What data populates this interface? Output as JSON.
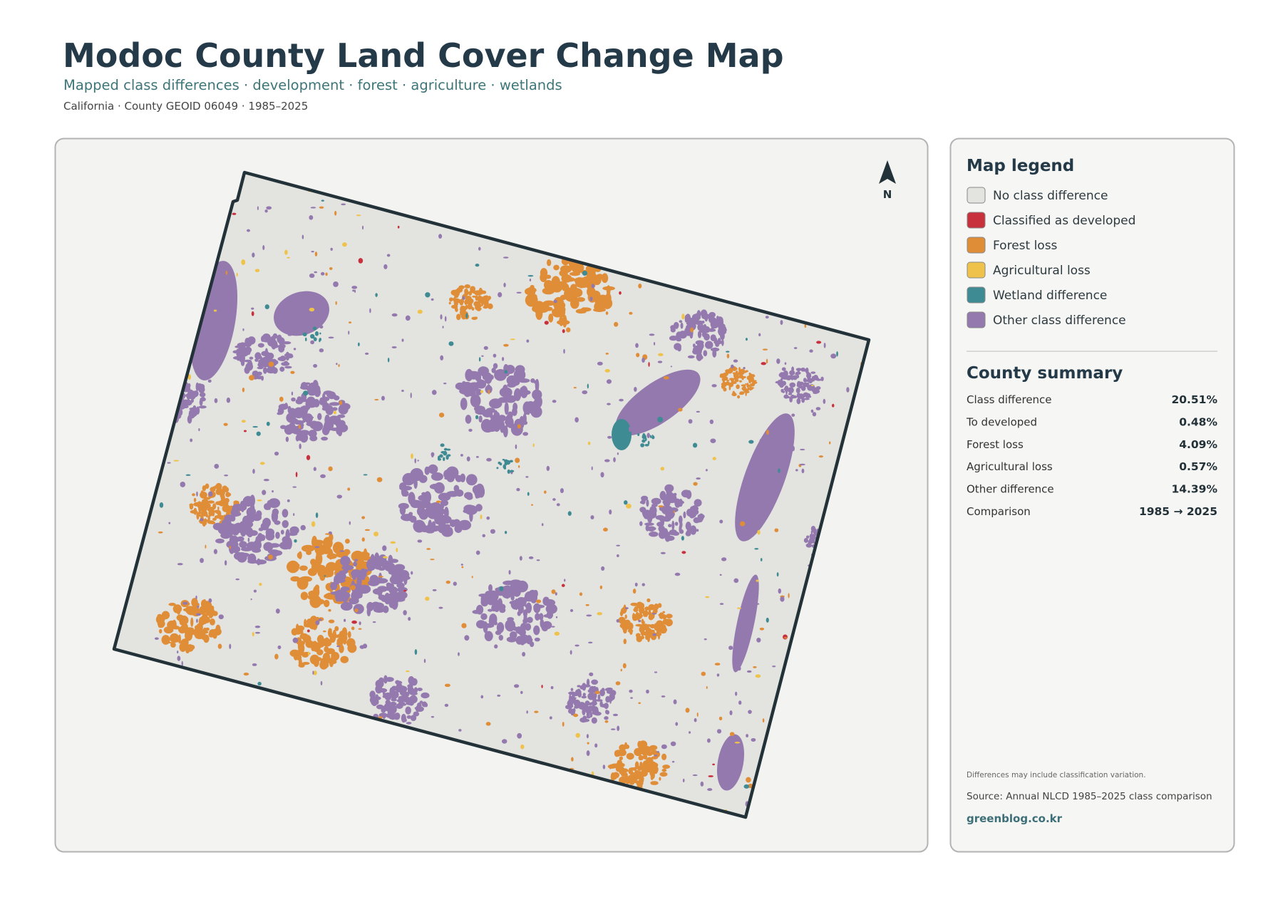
{
  "header": {
    "title": "Modoc County Land Cover Change Map",
    "subtitle": "Mapped class differences · development · forest · agriculture · wetlands",
    "meta": "California · County GEOID 06049 · 1985–2025"
  },
  "map": {
    "north_label": "N"
  },
  "legend": {
    "title": "Map legend",
    "items": [
      {
        "label": "No class difference",
        "color": "#e3e3df"
      },
      {
        "label": "Classified as developed",
        "color": "#c8303c"
      },
      {
        "label": "Forest loss",
        "color": "#e08d38"
      },
      {
        "label": "Agricultural loss",
        "color": "#efc34b"
      },
      {
        "label": "Wetland difference",
        "color": "#3f8b93"
      },
      {
        "label": "Other class difference",
        "color": "#9479ae"
      }
    ]
  },
  "summary": {
    "title": "County summary",
    "rows": [
      {
        "label": "Class difference",
        "value": "20.51%"
      },
      {
        "label": "To developed",
        "value": "0.48%"
      },
      {
        "label": "Forest loss",
        "value": "4.09%"
      },
      {
        "label": "Agricultural loss",
        "value": "0.57%"
      },
      {
        "label": "Other difference",
        "value": "14.39%"
      },
      {
        "label": "Comparison",
        "value": "1985 → 2025"
      }
    ]
  },
  "notes": {
    "caveat": "Differences may include classification variation.",
    "source": "Source: Annual NLCD 1985–2025 class comparison",
    "site": "greenblog.co.kr"
  }
}
